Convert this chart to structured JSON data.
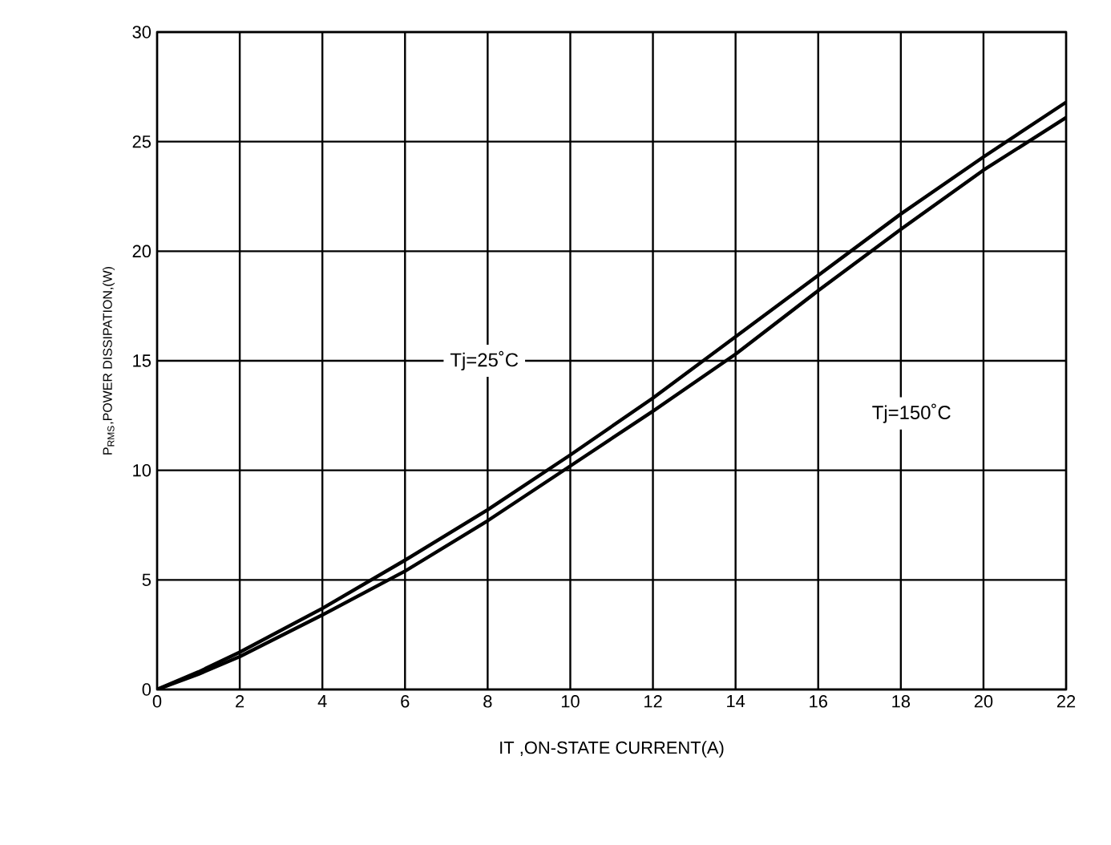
{
  "chart_data": {
    "type": "line",
    "xlabel": "IT ,ON-STATE CURRENT(A)",
    "ylabel": "P$_{RMS}$,POWER DISSIPATION,(W)",
    "x": [
      0,
      1,
      2,
      4,
      6,
      8,
      10,
      12,
      14,
      16,
      18,
      20,
      22
    ],
    "series": [
      {
        "color": "#000000",
        "values": [
          0,
          0.8,
          1.7,
          3.7,
          5.9,
          8.2,
          10.7,
          13.3,
          16.1,
          18.9,
          21.7,
          24.3,
          26.8
        ]
      },
      {
        "color": "#000000",
        "values": [
          0,
          0.7,
          1.5,
          3.4,
          5.4,
          7.7,
          10.2,
          12.7,
          15.3,
          18.2,
          21.0,
          23.7,
          26.1
        ]
      }
    ],
    "xlim": [
      0,
      22
    ],
    "ylim": [
      0,
      30
    ],
    "xticks": [
      0,
      2,
      4,
      6,
      8,
      10,
      12,
      14,
      16,
      18,
      20,
      22
    ],
    "yticks": [
      0,
      5,
      10,
      15,
      20,
      25,
      30
    ],
    "annotations": [
      "Tj=25˚C",
      "Tj=150˚C"
    ],
    "grid": true,
    "marker": "none",
    "line_style": "solid"
  }
}
